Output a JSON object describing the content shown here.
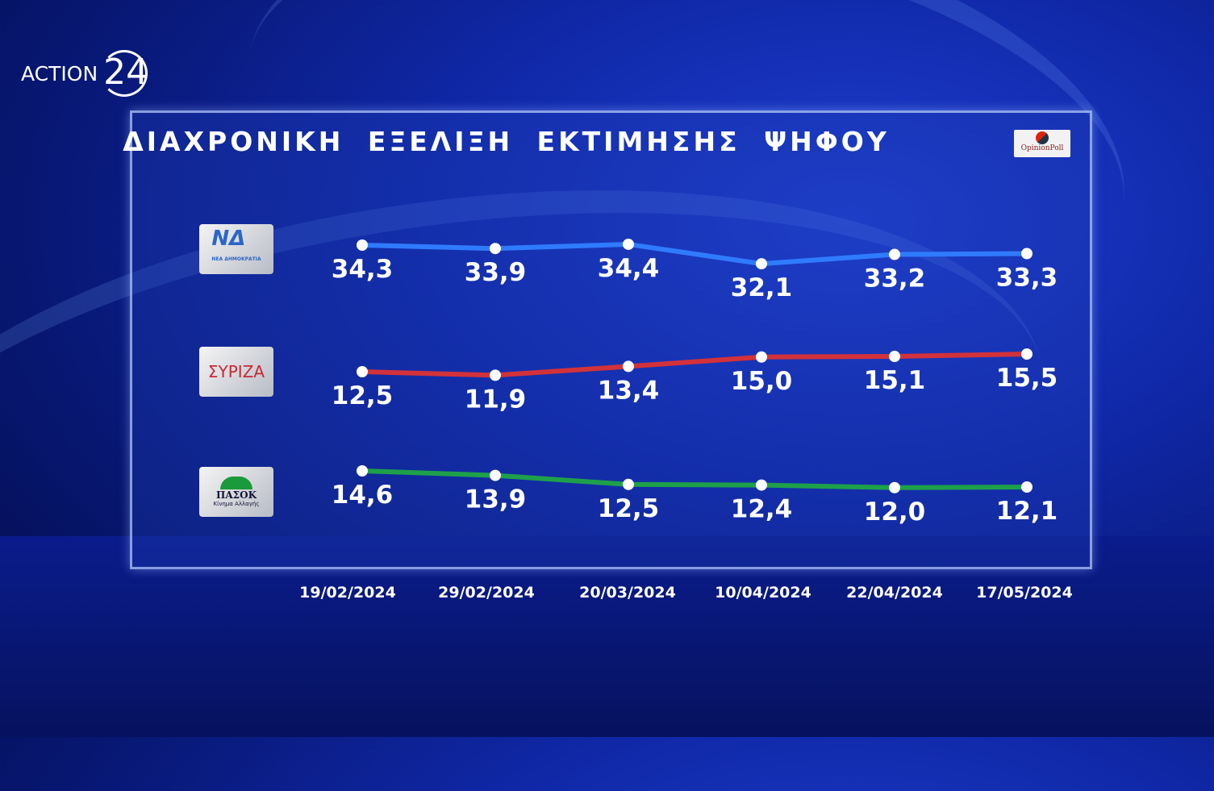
{
  "brand": {
    "name": "ACTION",
    "number": "24"
  },
  "source": "OpinionPoll",
  "chart_data": {
    "type": "line",
    "title": "ΔΙΑΧΡΟΝΙΚΗ ΕΞΕΛΙΞΗ ΕΚΤΙΜΗΣΗΣ ΨΗΦΟΥ",
    "categories": [
      "19/02/2024",
      "29/02/2024",
      "20/03/2024",
      "10/04/2024",
      "22/04/2024",
      "17/05/2024"
    ],
    "series": [
      {
        "name": "ΝΔ",
        "logo_text": "ΝΔ",
        "logo_sub": "ΝΕΑ ΔΗΜΟΚΡΑΤΙΑ",
        "color": "#2f7bff",
        "values": [
          34.3,
          33.9,
          34.4,
          32.1,
          33.2,
          33.3
        ],
        "labels": [
          "34,3",
          "33,9",
          "34,4",
          "32,1",
          "33,2",
          "33,3"
        ]
      },
      {
        "name": "ΣΥΡΙΖΑ",
        "logo_text": "ΣΥΡΙΖΑ",
        "color": "#d2323a",
        "values": [
          12.5,
          11.9,
          13.4,
          15.0,
          15.1,
          15.5
        ],
        "labels": [
          "12,5",
          "11,9",
          "13,4",
          "15,0",
          "15,1",
          "15,5"
        ]
      },
      {
        "name": "ΠΑΣΟΚ",
        "logo_text": "ΠΑΣΟΚ",
        "logo_sub": "Κίνημα Αλλαγής",
        "color": "#1ea04a",
        "values": [
          14.6,
          13.9,
          12.5,
          12.4,
          12.0,
          12.1
        ],
        "labels": [
          "14,6",
          "13,9",
          "12,5",
          "12,4",
          "12,0",
          "12,1"
        ]
      }
    ],
    "grid": false,
    "legend": "left (party logos per row)"
  }
}
